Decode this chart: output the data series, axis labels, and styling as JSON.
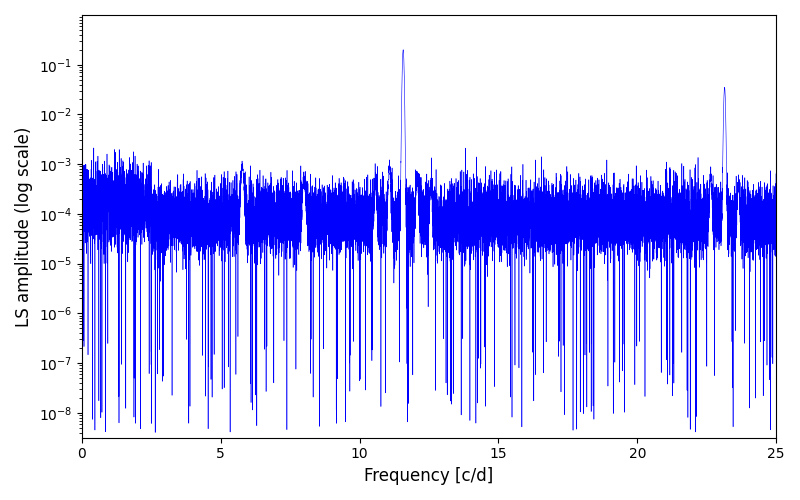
{
  "title": "",
  "xlabel": "Frequency [c/d]",
  "ylabel": "LS amplitude (log scale)",
  "line_color": "blue",
  "xlim": [
    0,
    25
  ],
  "ylim_log": [
    -8.5,
    -0.5
  ],
  "xticks": [
    0,
    5,
    10,
    15,
    20,
    25
  ],
  "bg_color": "#ffffff",
  "figsize": [
    8.0,
    5.0
  ],
  "dpi": 100,
  "peak1_freq": 11.57,
  "peak1_amp": 0.2,
  "peak2_freq": 23.14,
  "peak2_amp": 0.035,
  "noise_floor_log": -4.1,
  "noise_std": 0.35,
  "deep_dip_prob": 0.015,
  "seed": 123
}
